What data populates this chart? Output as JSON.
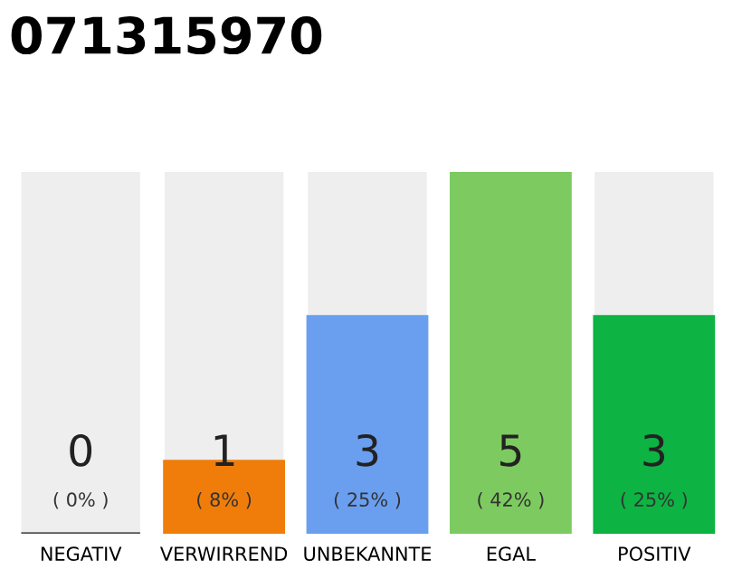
{
  "chart_data": {
    "type": "bar",
    "title": "071315970",
    "stacked": true,
    "categories": [
      "NEGATIV",
      "VERWIRREND",
      "UNBEKANNTE",
      "EGAL",
      "POSITIV"
    ],
    "series": [
      {
        "values": [
          0,
          1,
          3,
          5,
          3
        ],
        "colors": [
          "#555555",
          "#f07d0a",
          "#6a9ff0",
          "#7dcb60",
          "#0db343"
        ],
        "value_labels": [
          "0\n( 0% )",
          "1\n( 8% )",
          "3\n( 25% )",
          "5\n( 42% )",
          "3\n( 25% )"
        ]
      },
      {
        "values": [
          5,
          4,
          2,
          0,
          2
        ],
        "color": "#eeeeee"
      }
    ],
    "ylim": [
      0,
      5
    ]
  }
}
